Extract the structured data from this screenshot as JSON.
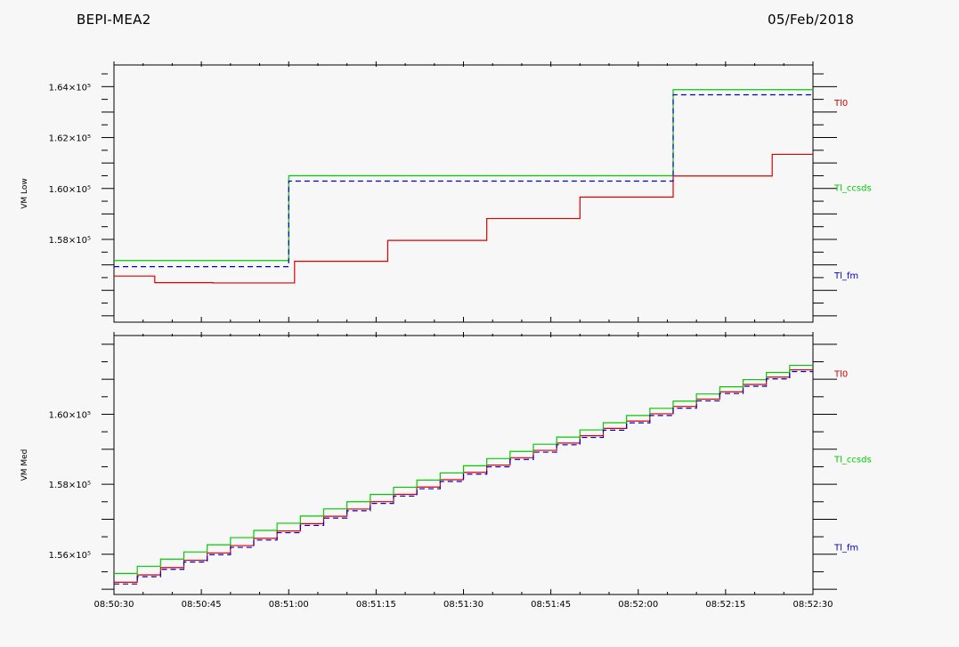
{
  "header": {
    "instrument": "BEPI-MEA2",
    "date": "05/Feb/2018"
  },
  "colors": {
    "Tl0": "#dd0000",
    "Tl_ccsds": "#00cc00",
    "Tl_fm": "#0000cc",
    "axis": "#000000",
    "background": "#f7f7f7"
  },
  "chart_data": [
    {
      "type": "line",
      "step": true,
      "ylabel": "VM Low",
      "xlim": [
        "08:50:30",
        "08:52:30"
      ],
      "ylim": [
        1.5475,
        1.6485
      ],
      "ytick_labels": [
        {
          "value": 1.58,
          "label": "1.58×10⁵"
        },
        {
          "value": 1.6,
          "label": "1.60×10⁵"
        },
        {
          "value": 1.62,
          "label": "1.62×10⁵"
        },
        {
          "value": 1.64,
          "label": "1.64×10⁵"
        }
      ],
      "legend": [
        "Tl0",
        "Tl_ccsds",
        "Tl_fm"
      ],
      "series": [
        {
          "name": "Tl0",
          "color": "#dd0000",
          "dash": false,
          "x": [
            "08:50:30",
            "08:50:37",
            "08:50:47",
            "08:51:01",
            "08:51:17",
            "08:51:34",
            "08:51:50",
            "08:52:06",
            "08:52:23",
            "08:52:30"
          ],
          "y": [
            1.5656,
            1.563,
            1.5629,
            1.5714,
            1.5796,
            1.5882,
            1.5966,
            1.6049,
            1.6134,
            1.6134
          ]
        },
        {
          "name": "Tl_ccsds",
          "color": "#00cc00",
          "dash": false,
          "x": [
            "08:50:30",
            "08:51:00",
            "08:52:06",
            "08:52:30"
          ],
          "y": [
            1.5717,
            1.605,
            1.6388,
            1.6388
          ]
        },
        {
          "name": "Tl_fm",
          "color": "#0000cc",
          "dash": true,
          "x": [
            "08:50:30",
            "08:51:00",
            "08:52:06",
            "08:52:30"
          ],
          "y": [
            1.5693,
            1.6029,
            1.6368,
            1.6368
          ]
        }
      ]
    },
    {
      "type": "line",
      "step": true,
      "ylabel": "VM Med",
      "xlim": [
        "08:50:30",
        "08:52:30"
      ],
      "ylim": [
        1.5485,
        1.6225
      ],
      "ytick_labels": [
        {
          "value": 1.56,
          "label": "1.56×10⁵"
        },
        {
          "value": 1.58,
          "label": "1.58×10⁵"
        },
        {
          "value": 1.6,
          "label": "1.60×10⁵"
        }
      ],
      "legend": [
        "Tl0",
        "Tl_ccsds",
        "Tl_fm"
      ],
      "series": [
        {
          "name": "Tl0",
          "color": "#dd0000",
          "dash": false,
          "start": "08:50:30",
          "end": "08:52:30",
          "y0": 1.552,
          "y1": 1.6127,
          "steps": 30
        },
        {
          "name": "Tl_ccsds",
          "color": "#00cc00",
          "dash": false,
          "start": "08:50:30",
          "end": "08:52:30",
          "y0": 1.5545,
          "y1": 1.614,
          "steps": 30
        },
        {
          "name": "Tl_fm",
          "color": "#0000cc",
          "dash": true,
          "start": "08:50:30",
          "end": "08:52:30",
          "y0": 1.5515,
          "y1": 1.6122,
          "steps": 30
        }
      ]
    }
  ],
  "xtick_labels": [
    "08:50:30",
    "08:50:45",
    "08:51:00",
    "08:51:15",
    "08:51:30",
    "08:51:45",
    "08:52:00",
    "08:52:15",
    "08:52:30"
  ]
}
